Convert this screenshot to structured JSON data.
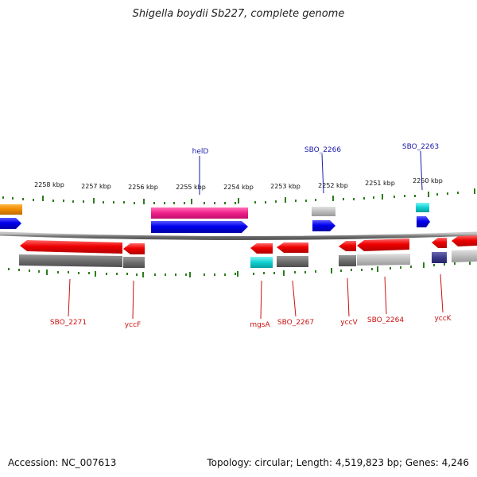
{
  "title": "Shigella boydii Sb227, complete genome",
  "footer": {
    "accession": "Accession: NC_007613",
    "stats": "Topology: circular; Length: 4,519,823 bp; Genes: 4,246"
  },
  "colors": {
    "forward_label": "#1a1aaa",
    "reverse_label": "#cc1111",
    "tick": "#2e7d1e",
    "backbone": "#888888"
  },
  "kbp_labels": [
    "2258 kbp",
    "2257 kbp",
    "2256 kbp",
    "2255 kbp",
    "2254 kbp",
    "2253 kbp",
    "2252 kbp",
    "2251 kbp",
    "2250 kbp"
  ],
  "forward_gene_labels": [
    {
      "name": "helD"
    },
    {
      "name": "SBO_2266"
    },
    {
      "name": "SBO_2263"
    }
  ],
  "reverse_gene_labels": [
    {
      "name": "SBO_2271"
    },
    {
      "name": "yccF"
    },
    {
      "name": "mgsA"
    },
    {
      "name": "SBO_2267"
    },
    {
      "name": "yccV"
    },
    {
      "name": "SBO_2264"
    },
    {
      "name": "yccK"
    }
  ]
}
